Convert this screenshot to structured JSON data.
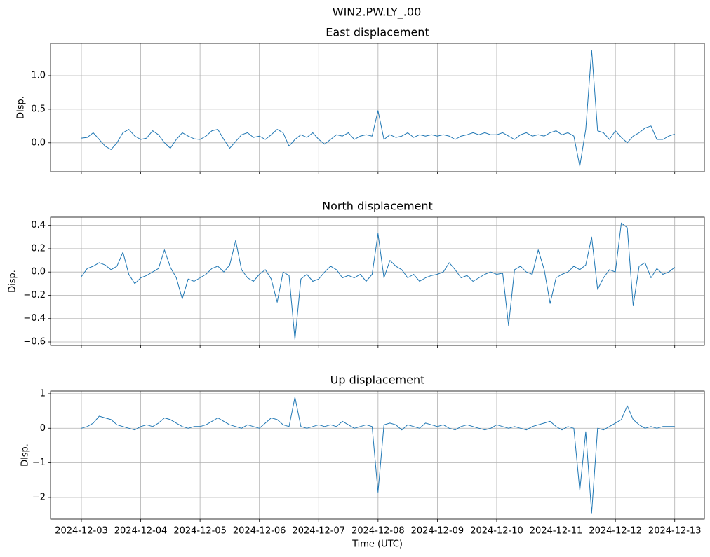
{
  "title": "WIN2.PW.LY_.00",
  "chart_data": [
    {
      "type": "line",
      "title": "East displacement",
      "ylabel": "Disp.",
      "color": "#1f77b4",
      "grid": true,
      "xlim": [
        -0.52,
        10.5
      ],
      "xticks": [
        0,
        1,
        2,
        3,
        4,
        5,
        6,
        7,
        8,
        9,
        10
      ],
      "ylim": [
        -0.43,
        1.48
      ],
      "yticks": [
        {
          "value": 0,
          "label": "0.0"
        },
        {
          "value": 0.5,
          "label": "0.5"
        },
        {
          "value": 1,
          "label": "1.0"
        }
      ],
      "x": [
        0,
        0.1,
        0.2,
        0.3,
        0.4,
        0.5,
        0.6,
        0.7,
        0.8,
        0.9,
        1,
        1.1,
        1.2,
        1.3,
        1.4,
        1.5,
        1.6,
        1.7,
        1.8,
        1.9,
        2,
        2.1,
        2.2,
        2.3,
        2.4,
        2.5,
        2.6,
        2.7,
        2.8,
        2.9,
        3,
        3.1,
        3.2,
        3.3,
        3.4,
        3.5,
        3.6,
        3.7,
        3.8,
        3.9,
        4,
        4.1,
        4.2,
        4.3,
        4.4,
        4.5,
        4.6,
        4.7,
        4.8,
        4.9,
        5,
        5.1,
        5.2,
        5.3,
        5.4,
        5.5,
        5.6,
        5.7,
        5.8,
        5.9,
        6,
        6.1,
        6.2,
        6.3,
        6.4,
        6.5,
        6.6,
        6.7,
        6.8,
        6.9,
        7,
        7.1,
        7.2,
        7.3,
        7.4,
        7.5,
        7.6,
        7.7,
        7.8,
        7.9,
        8,
        8.1,
        8.2,
        8.3,
        8.4,
        8.5,
        8.6,
        8.7,
        8.8,
        8.9,
        9,
        9.1,
        9.2,
        9.3,
        9.4,
        9.5,
        9.6,
        9.7,
        9.8,
        9.9,
        10
      ],
      "values": [
        0.07,
        0.08,
        0.15,
        0.05,
        -0.05,
        -0.1,
        0.0,
        0.15,
        0.2,
        0.1,
        0.05,
        0.07,
        0.18,
        0.12,
        0.0,
        -0.08,
        0.05,
        0.15,
        0.1,
        0.06,
        0.05,
        0.1,
        0.18,
        0.2,
        0.05,
        -0.08,
        0.02,
        0.12,
        0.15,
        0.08,
        0.1,
        0.05,
        0.12,
        0.2,
        0.15,
        -0.05,
        0.05,
        0.12,
        0.08,
        0.15,
        0.05,
        -0.02,
        0.05,
        0.12,
        0.1,
        0.15,
        0.05,
        0.1,
        0.12,
        0.1,
        0.48,
        0.05,
        0.12,
        0.08,
        0.1,
        0.15,
        0.08,
        0.12,
        0.1,
        0.12,
        0.1,
        0.12,
        0.1,
        0.05,
        0.1,
        0.12,
        0.15,
        0.12,
        0.15,
        0.12,
        0.12,
        0.15,
        0.1,
        0.05,
        0.12,
        0.15,
        0.1,
        0.12,
        0.1,
        0.15,
        0.18,
        0.12,
        0.15,
        0.1,
        -0.35,
        0.2,
        1.38,
        0.18,
        0.15,
        0.05,
        0.18,
        0.08,
        0.0,
        0.1,
        0.15,
        0.22,
        0.25,
        0.05,
        0.05,
        0.1,
        0.13
      ]
    },
    {
      "type": "line",
      "title": "North displacement",
      "ylabel": "Disp.",
      "color": "#1f77b4",
      "grid": true,
      "xlim": [
        -0.52,
        10.5
      ],
      "xticks": [
        0,
        1,
        2,
        3,
        4,
        5,
        6,
        7,
        8,
        9,
        10
      ],
      "ylim": [
        -0.63,
        0.47
      ],
      "yticks": [
        {
          "value": -0.6,
          "label": "−0.6"
        },
        {
          "value": -0.4,
          "label": "−0.4"
        },
        {
          "value": -0.2,
          "label": "−0.2"
        },
        {
          "value": 0,
          "label": "0.0"
        },
        {
          "value": 0.2,
          "label": "0.2"
        },
        {
          "value": 0.4,
          "label": "0.4"
        }
      ],
      "x": [
        0,
        0.1,
        0.2,
        0.3,
        0.4,
        0.5,
        0.6,
        0.7,
        0.8,
        0.9,
        1,
        1.1,
        1.2,
        1.3,
        1.4,
        1.5,
        1.6,
        1.7,
        1.8,
        1.9,
        2,
        2.1,
        2.2,
        2.3,
        2.4,
        2.5,
        2.6,
        2.7,
        2.8,
        2.9,
        3,
        3.1,
        3.2,
        3.3,
        3.4,
        3.5,
        3.6,
        3.7,
        3.8,
        3.9,
        4,
        4.1,
        4.2,
        4.3,
        4.4,
        4.5,
        4.6,
        4.7,
        4.8,
        4.9,
        5,
        5.1,
        5.2,
        5.3,
        5.4,
        5.5,
        5.6,
        5.7,
        5.8,
        5.9,
        6,
        6.1,
        6.2,
        6.3,
        6.4,
        6.5,
        6.6,
        6.7,
        6.8,
        6.9,
        7,
        7.1,
        7.2,
        7.3,
        7.4,
        7.5,
        7.6,
        7.7,
        7.8,
        7.9,
        8,
        8.1,
        8.2,
        8.3,
        8.4,
        8.5,
        8.6,
        8.7,
        8.8,
        8.9,
        9,
        9.1,
        9.2,
        9.3,
        9.4,
        9.5,
        9.6,
        9.7,
        9.8,
        9.9,
        10
      ],
      "values": [
        -0.04,
        0.03,
        0.05,
        0.08,
        0.06,
        0.02,
        0.05,
        0.17,
        -0.02,
        -0.1,
        -0.05,
        -0.03,
        0.0,
        0.03,
        0.19,
        0.04,
        -0.05,
        -0.23,
        -0.06,
        -0.08,
        -0.05,
        -0.02,
        0.03,
        0.05,
        0.0,
        0.06,
        0.27,
        0.02,
        -0.05,
        -0.08,
        -0.02,
        0.02,
        -0.06,
        -0.26,
        0.0,
        -0.03,
        -0.58,
        -0.06,
        -0.02,
        -0.08,
        -0.06,
        0.0,
        0.05,
        0.02,
        -0.05,
        -0.03,
        -0.05,
        -0.02,
        -0.08,
        -0.02,
        0.33,
        -0.05,
        0.1,
        0.05,
        0.02,
        -0.05,
        -0.02,
        -0.08,
        -0.05,
        -0.03,
        -0.02,
        0.0,
        0.08,
        0.02,
        -0.05,
        -0.03,
        -0.08,
        -0.05,
        -0.02,
        0.0,
        -0.02,
        -0.01,
        -0.46,
        0.02,
        0.05,
        0.0,
        -0.02,
        0.19,
        0.02,
        -0.27,
        -0.05,
        -0.02,
        0.0,
        0.05,
        0.02,
        0.06,
        0.3,
        -0.15,
        -0.05,
        0.02,
        0.0,
        0.42,
        0.38,
        -0.29,
        0.05,
        0.08,
        -0.05,
        0.03,
        -0.02,
        0.0,
        0.04
      ]
    },
    {
      "type": "line",
      "title": "Up displacement",
      "ylabel": "Disp.",
      "xlabel": "Time (UTC)",
      "color": "#1f77b4",
      "grid": true,
      "xlim": [
        -0.52,
        10.5
      ],
      "xticks": [
        {
          "value": 0,
          "label": "2024-12-03"
        },
        {
          "value": 1,
          "label": "2024-12-04"
        },
        {
          "value": 2,
          "label": "2024-12-05"
        },
        {
          "value": 3,
          "label": "2024-12-06"
        },
        {
          "value": 4,
          "label": "2024-12-07"
        },
        {
          "value": 5,
          "label": "2024-12-08"
        },
        {
          "value": 6,
          "label": "2024-12-09"
        },
        {
          "value": 7,
          "label": "2024-12-10"
        },
        {
          "value": 8,
          "label": "2024-12-11"
        },
        {
          "value": 9,
          "label": "2024-12-12"
        },
        {
          "value": 10,
          "label": "2024-12-13"
        }
      ],
      "ylim": [
        -2.63,
        1.08
      ],
      "yticks": [
        {
          "value": -2,
          "label": "−2"
        },
        {
          "value": -1,
          "label": "−1"
        },
        0,
        1
      ],
      "x": [
        0,
        0.1,
        0.2,
        0.3,
        0.4,
        0.5,
        0.6,
        0.7,
        0.8,
        0.9,
        1,
        1.1,
        1.2,
        1.3,
        1.4,
        1.5,
        1.6,
        1.7,
        1.8,
        1.9,
        2,
        2.1,
        2.2,
        2.3,
        2.4,
        2.5,
        2.6,
        2.7,
        2.8,
        2.9,
        3,
        3.1,
        3.2,
        3.3,
        3.4,
        3.5,
        3.6,
        3.7,
        3.8,
        3.9,
        4,
        4.1,
        4.2,
        4.3,
        4.4,
        4.5,
        4.6,
        4.7,
        4.8,
        4.9,
        5,
        5.1,
        5.2,
        5.3,
        5.4,
        5.5,
        5.6,
        5.7,
        5.8,
        5.9,
        6,
        6.1,
        6.2,
        6.3,
        6.4,
        6.5,
        6.6,
        6.7,
        6.8,
        6.9,
        7,
        7.1,
        7.2,
        7.3,
        7.4,
        7.5,
        7.6,
        7.7,
        7.8,
        7.9,
        8,
        8.1,
        8.2,
        8.3,
        8.4,
        8.5,
        8.6,
        8.7,
        8.8,
        8.9,
        9,
        9.1,
        9.2,
        9.3,
        9.4,
        9.5,
        9.6,
        9.7,
        9.8,
        9.9,
        10
      ],
      "values": [
        0.0,
        0.05,
        0.15,
        0.35,
        0.3,
        0.25,
        0.1,
        0.05,
        0.0,
        -0.05,
        0.05,
        0.1,
        0.05,
        0.15,
        0.3,
        0.25,
        0.15,
        0.05,
        0.0,
        0.05,
        0.05,
        0.1,
        0.2,
        0.3,
        0.2,
        0.1,
        0.05,
        0.0,
        0.1,
        0.05,
        0.0,
        0.15,
        0.3,
        0.25,
        0.1,
        0.05,
        0.9,
        0.05,
        0.0,
        0.05,
        0.1,
        0.05,
        0.1,
        0.05,
        0.2,
        0.1,
        0.0,
        0.05,
        0.1,
        0.05,
        -1.85,
        0.1,
        0.15,
        0.1,
        -0.05,
        0.1,
        0.05,
        0.0,
        0.15,
        0.1,
        0.05,
        0.1,
        0.0,
        -0.05,
        0.05,
        0.1,
        0.05,
        0.0,
        -0.05,
        0.0,
        0.1,
        0.05,
        0.0,
        0.05,
        0.0,
        -0.05,
        0.05,
        0.1,
        0.15,
        0.2,
        0.05,
        -0.05,
        0.05,
        0.0,
        -1.8,
        -0.1,
        -2.45,
        0.0,
        -0.05,
        0.05,
        0.15,
        0.25,
        0.65,
        0.25,
        0.1,
        0.0,
        0.05,
        0.0,
        0.05,
        0.05,
        0.05
      ]
    }
  ]
}
